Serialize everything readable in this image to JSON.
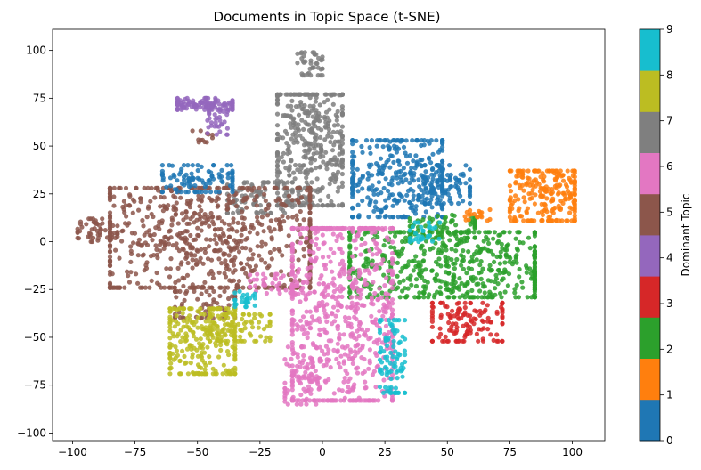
{
  "chart_data": {
    "type": "scatter",
    "title": "Documents in Topic Space (t-SNE)",
    "xlabel": "",
    "ylabel": "",
    "xlim": [
      -108,
      113
    ],
    "ylim": [
      -104,
      111
    ],
    "xticks": [
      -100,
      -75,
      -50,
      -25,
      0,
      25,
      50,
      75,
      100
    ],
    "yticks": [
      -100,
      -75,
      -50,
      -25,
      0,
      25,
      50,
      75,
      100
    ],
    "grid": false,
    "colorbar": {
      "label": "Dominant Topic",
      "ticks": [
        0,
        1,
        2,
        3,
        4,
        5,
        6,
        7,
        8,
        9
      ],
      "colors": [
        "#1f77b4",
        "#ff7f0e",
        "#2ca02c",
        "#d62728",
        "#9467bd",
        "#8c564b",
        "#e377c2",
        "#7f7f7f",
        "#bcbd22",
        "#17becf"
      ]
    },
    "clusters": [
      {
        "topic": 7,
        "center": [
          -5,
          48
        ],
        "size": [
          26,
          58
        ],
        "count": 420
      },
      {
        "topic": 7,
        "center": [
          -25,
          23
        ],
        "size": [
          26,
          16
        ],
        "count": 90
      },
      {
        "topic": 7,
        "center": [
          -5,
          93
        ],
        "size": [
          10,
          12
        ],
        "count": 40
      },
      {
        "topic": 5,
        "center": [
          -45,
          2
        ],
        "size": [
          80,
          52
        ],
        "count": 760
      },
      {
        "topic": 5,
        "center": [
          -90,
          6
        ],
        "size": [
          16,
          12
        ],
        "count": 50
      },
      {
        "topic": 5,
        "center": [
          -47,
          -33
        ],
        "size": [
          24,
          14
        ],
        "count": 60
      },
      {
        "topic": 5,
        "center": [
          -48,
          55
        ],
        "size": [
          8,
          6
        ],
        "count": 12
      },
      {
        "topic": 0,
        "center": [
          30,
          33
        ],
        "size": [
          36,
          40
        ],
        "count": 340
      },
      {
        "topic": 0,
        "center": [
          50,
          30
        ],
        "size": [
          18,
          20
        ],
        "count": 90
      },
      {
        "topic": 0,
        "center": [
          -50,
          33
        ],
        "size": [
          28,
          14
        ],
        "count": 100
      },
      {
        "topic": 2,
        "center": [
          48,
          -12
        ],
        "size": [
          74,
          34
        ],
        "count": 600
      },
      {
        "topic": 2,
        "center": [
          48,
          8
        ],
        "size": [
          26,
          12
        ],
        "count": 70
      },
      {
        "topic": 6,
        "center": [
          8,
          -38
        ],
        "size": [
          40,
          90
        ],
        "count": 700
      },
      {
        "topic": 6,
        "center": [
          -8,
          -70
        ],
        "size": [
          14,
          30
        ],
        "count": 80
      },
      {
        "topic": 6,
        "center": [
          -20,
          -22
        ],
        "size": [
          18,
          10
        ],
        "count": 40
      },
      {
        "topic": 8,
        "center": [
          -48,
          -52
        ],
        "size": [
          26,
          34
        ],
        "count": 250
      },
      {
        "topic": 8,
        "center": [
          -33,
          -45
        ],
        "size": [
          24,
          14
        ],
        "count": 90
      },
      {
        "topic": 4,
        "center": [
          -47,
          72
        ],
        "size": [
          22,
          6
        ],
        "count": 120
      },
      {
        "topic": 4,
        "center": [
          -42,
          62
        ],
        "size": [
          8,
          12
        ],
        "count": 30
      },
      {
        "topic": 1,
        "center": [
          88,
          24
        ],
        "size": [
          26,
          26
        ],
        "count": 240
      },
      {
        "topic": 1,
        "center": [
          62,
          14
        ],
        "size": [
          10,
          6
        ],
        "count": 18
      },
      {
        "topic": 3,
        "center": [
          58,
          -42
        ],
        "size": [
          28,
          20
        ],
        "count": 130
      },
      {
        "topic": 9,
        "center": [
          28,
          -60
        ],
        "size": [
          10,
          38
        ],
        "count": 90
      },
      {
        "topic": 9,
        "center": [
          -31,
          -30
        ],
        "size": [
          8,
          8
        ],
        "count": 25
      },
      {
        "topic": 9,
        "center": [
          41,
          5
        ],
        "size": [
          12,
          10
        ],
        "count": 30
      }
    ]
  }
}
